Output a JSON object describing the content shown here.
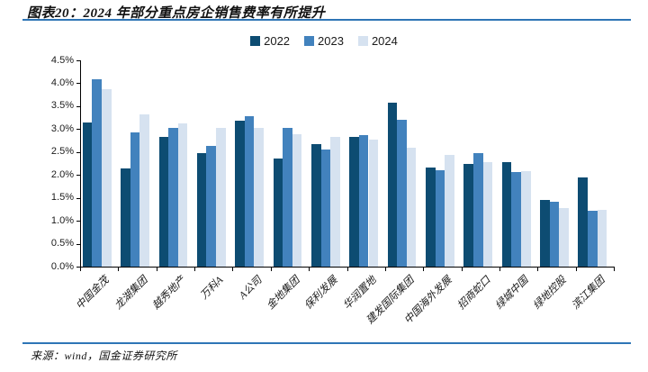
{
  "header": {
    "title": "图表20：2024 年部分重点房企销售费率有所提升"
  },
  "footer": {
    "source": "来源：wind，国金证券研究所"
  },
  "colors": {
    "divider": "#2e75b6",
    "axis": "#000000",
    "series_2022": "#0d4c72",
    "series_2023": "#4282bd",
    "series_2024": "#d6e2f0"
  },
  "chart_data": {
    "type": "bar",
    "title": "图表20：2024 年部分重点房企销售费率有所提升",
    "categories": [
      "中国金茂",
      "龙湖集团",
      "越秀地产",
      "万科A",
      "A公司",
      "金地集团",
      "保利发展",
      "华润置地",
      "建发国际集团",
      "中国海外发展",
      "招商蛇口",
      "绿城中国",
      "绿地控股",
      "滨江集团"
    ],
    "series": [
      {
        "name": "2022",
        "color": "#0d4c72",
        "values": [
          3.15,
          2.15,
          2.82,
          2.48,
          3.18,
          2.35,
          2.67,
          2.82,
          3.57,
          2.17,
          2.24,
          2.28,
          1.45,
          1.95
        ]
      },
      {
        "name": "2023",
        "color": "#4282bd",
        "values": [
          4.08,
          2.92,
          3.02,
          2.63,
          3.28,
          3.02,
          2.55,
          2.86,
          3.2,
          2.1,
          2.48,
          2.06,
          1.41,
          1.21
        ]
      },
      {
        "name": "2024",
        "color": "#d6e2f0",
        "values": [
          3.87,
          3.32,
          3.13,
          3.02,
          3.02,
          2.88,
          2.83,
          2.78,
          2.6,
          2.44,
          2.27,
          2.09,
          1.27,
          1.24
        ]
      }
    ],
    "xlabel": "",
    "ylabel": "",
    "ylim": [
      0,
      4.5
    ],
    "y_tick_step": 0.5,
    "y_ticks": [
      "4.5%",
      "4.0%",
      "3.5%",
      "3.0%",
      "2.5%",
      "2.0%",
      "1.5%",
      "1.0%",
      "0.5%",
      "0.0%"
    ],
    "grid": false,
    "legend_position": "top"
  }
}
